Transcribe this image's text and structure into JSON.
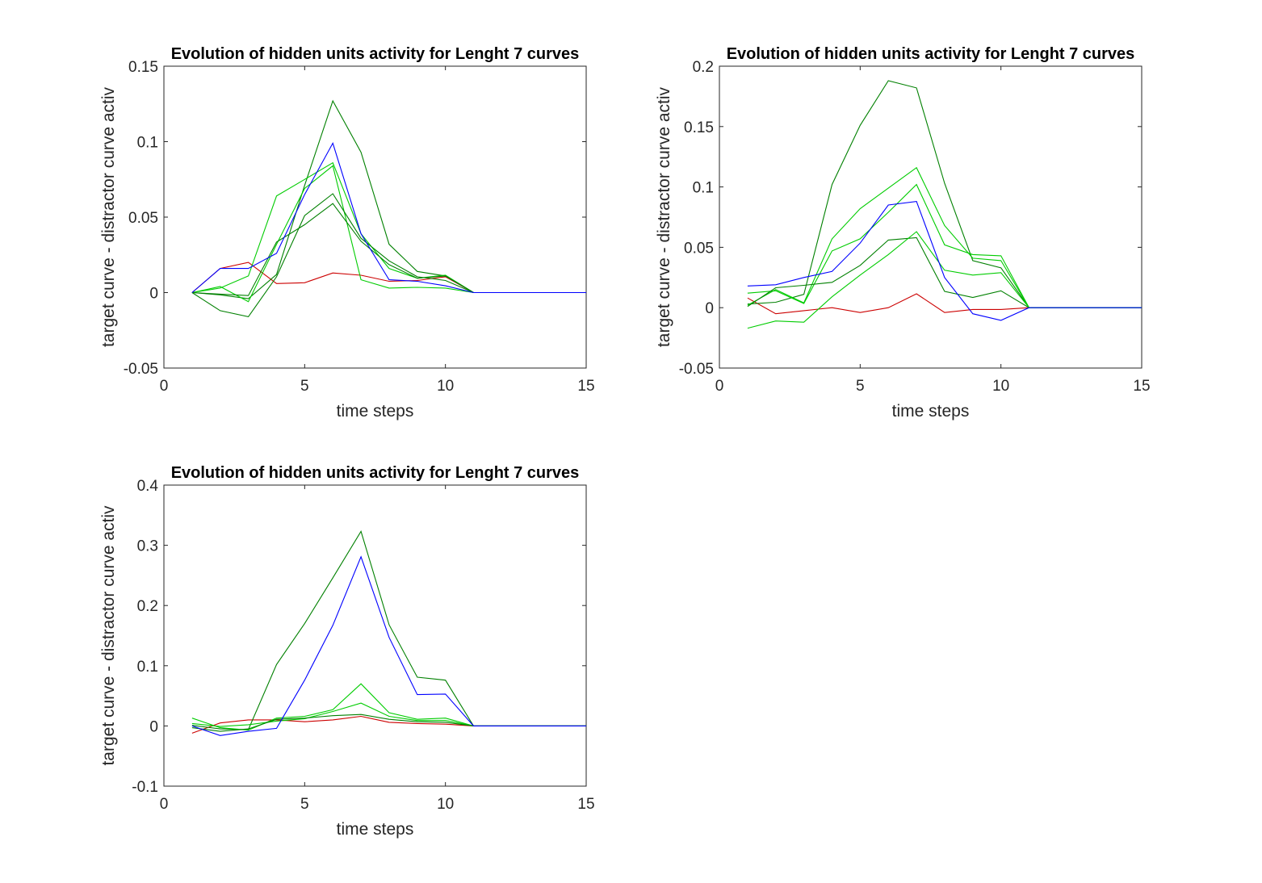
{
  "colors": {
    "red": "#cc0000",
    "blue": "#0000ff",
    "green": "#00cc00",
    "darkgreen": "#008000"
  },
  "chart_data": [
    {
      "type": "line",
      "title": "Evolution of hidden units activity for Lenght 7 curves",
      "xlabel": "time steps",
      "ylabel": "target curve - distractor curve activ",
      "xlim": [
        0,
        15
      ],
      "ylim": [
        -0.05,
        0.15
      ],
      "xticks": [
        "0",
        "5",
        "10",
        "15"
      ],
      "yticks": [
        "-0.05",
        "0",
        "0.05",
        "0.1",
        "0.15"
      ],
      "grid": false,
      "x": [
        1,
        2,
        3,
        4,
        5,
        6,
        7,
        8,
        9,
        10,
        11,
        12,
        13,
        14,
        15
      ],
      "series": [
        {
          "color": "red",
          "values": [
            0,
            0.016,
            0.02,
            0.006,
            0.0065,
            0.013,
            0.0115,
            0.0075,
            0.008,
            0.0105,
            0,
            0,
            0,
            0,
            0
          ]
        },
        {
          "color": "darkgreen",
          "values": [
            0,
            -0.0015,
            -0.004,
            0.012,
            0.071,
            0.127,
            0.093,
            0.032,
            0.014,
            0.011,
            0,
            0,
            0,
            0,
            0
          ]
        },
        {
          "color": "green",
          "values": [
            0,
            0.003,
            0.011,
            0.064,
            0.075,
            0.086,
            0.039,
            0.016,
            0.0095,
            0.0115,
            0,
            0,
            0,
            0,
            0
          ]
        },
        {
          "color": "green",
          "values": [
            0,
            0.004,
            -0.006,
            0.032,
            0.069,
            0.084,
            0.0085,
            0.003,
            0.0035,
            0.003,
            0,
            0,
            0,
            0,
            0
          ]
        },
        {
          "color": "darkgreen",
          "values": [
            0,
            -0.012,
            -0.016,
            0.0105,
            0.051,
            0.0655,
            0.036,
            0.021,
            0.0105,
            0.008,
            0,
            0,
            0,
            0,
            0
          ]
        },
        {
          "color": "darkgreen",
          "values": [
            0,
            -0.001,
            -0.002,
            0.0335,
            0.045,
            0.059,
            0.034,
            0.0185,
            0.0095,
            0.011,
            0,
            0,
            0,
            0,
            0
          ]
        },
        {
          "color": "blue",
          "values": [
            0,
            0.016,
            0.016,
            0.026,
            0.065,
            0.099,
            0.039,
            0.0085,
            0.0075,
            0.0045,
            0,
            0,
            0,
            0,
            0
          ]
        }
      ]
    },
    {
      "type": "line",
      "title": "Evolution of hidden units activity for Lenght 7 curves",
      "xlabel": "time steps",
      "ylabel": "target curve - distractor curve activ",
      "xlim": [
        0,
        15
      ],
      "ylim": [
        -0.05,
        0.2
      ],
      "xticks": [
        "0",
        "5",
        "10",
        "15"
      ],
      "yticks": [
        "-0.05",
        "0",
        "0.05",
        "0.1",
        "0.15",
        "0.2"
      ],
      "grid": false,
      "x": [
        1,
        2,
        3,
        4,
        5,
        6,
        7,
        8,
        9,
        10,
        11,
        12,
        13,
        14,
        15
      ],
      "series": [
        {
          "color": "red",
          "values": [
            0.008,
            -0.005,
            -0.0025,
            0,
            -0.004,
            0,
            0.0115,
            -0.004,
            -0.0015,
            -0.0015,
            0,
            0,
            0,
            0,
            0
          ]
        },
        {
          "color": "darkgreen",
          "values": [
            0.003,
            0.0045,
            0.011,
            0.102,
            0.151,
            0.188,
            0.182,
            0.103,
            0.039,
            0.033,
            0,
            0,
            0,
            0,
            0
          ]
        },
        {
          "color": "green",
          "values": [
            0.002,
            0.015,
            0.004,
            0.057,
            0.082,
            0.099,
            0.116,
            0.068,
            0.041,
            0.039,
            0,
            0,
            0,
            0,
            0
          ]
        },
        {
          "color": "green",
          "values": [
            0.012,
            0.014,
            0.0035,
            0.047,
            0.057,
            0.079,
            0.102,
            0.052,
            0.044,
            0.043,
            0,
            0,
            0,
            0,
            0
          ]
        },
        {
          "color": "darkgreen",
          "values": [
            0.001,
            0.0165,
            0.0185,
            0.021,
            0.035,
            0.056,
            0.058,
            0.0135,
            0.0085,
            0.014,
            0,
            0,
            0,
            0,
            0
          ]
        },
        {
          "color": "green",
          "values": [
            -0.017,
            -0.011,
            -0.012,
            0.009,
            0.027,
            0.044,
            0.063,
            0.031,
            0.027,
            0.029,
            0,
            0,
            0,
            0,
            0
          ]
        },
        {
          "color": "blue",
          "values": [
            0.018,
            0.019,
            0.025,
            0.03,
            0.0535,
            0.085,
            0.088,
            0.025,
            -0.005,
            -0.0105,
            0,
            0,
            0,
            0,
            0
          ]
        }
      ]
    },
    {
      "type": "line",
      "title": "Evolution of hidden units activity for Lenght 7 curves",
      "xlabel": "time steps",
      "ylabel": "target curve - distractor curve activ",
      "xlim": [
        0,
        15
      ],
      "ylim": [
        -0.1,
        0.4
      ],
      "xticks": [
        "0",
        "5",
        "10",
        "15"
      ],
      "yticks": [
        "-0.1",
        "0",
        "0.1",
        "0.2",
        "0.3",
        "0.4"
      ],
      "grid": false,
      "x": [
        1,
        2,
        3,
        4,
        5,
        6,
        7,
        8,
        9,
        10,
        11,
        12,
        13,
        14,
        15
      ],
      "series": [
        {
          "color": "red",
          "values": [
            -0.012,
            0.005,
            0.01,
            0.01,
            0.007,
            0.01,
            0.016,
            0.006,
            0.004,
            0.003,
            0,
            0,
            0,
            0,
            0
          ]
        },
        {
          "color": "darkgreen",
          "values": [
            0.001,
            -0.005,
            -0.006,
            0.102,
            0.17,
            0.246,
            0.323,
            0.168,
            0.081,
            0.076,
            0,
            0,
            0,
            0,
            0
          ]
        },
        {
          "color": "green",
          "values": [
            0.013,
            -0.003,
            -0.007,
            0.013,
            0.016,
            0.027,
            0.07,
            0.022,
            0.011,
            0.013,
            0,
            0,
            0,
            0,
            0
          ]
        },
        {
          "color": "green",
          "values": [
            0.004,
            -0.001,
            0.002,
            0.008,
            0.012,
            0.024,
            0.038,
            0.016,
            0.009,
            0.009,
            0,
            0,
            0,
            0,
            0
          ]
        },
        {
          "color": "darkgreen",
          "values": [
            -0.003,
            -0.009,
            -0.005,
            0.011,
            0.013,
            0.017,
            0.019,
            0.011,
            0.007,
            0.006,
            0,
            0,
            0,
            0,
            0
          ]
        },
        {
          "color": "blue",
          "values": [
            0,
            -0.016,
            -0.009,
            -0.004,
            0.076,
            0.167,
            0.281,
            0.147,
            0.052,
            0.053,
            0,
            0,
            0,
            0,
            0
          ]
        }
      ]
    }
  ]
}
